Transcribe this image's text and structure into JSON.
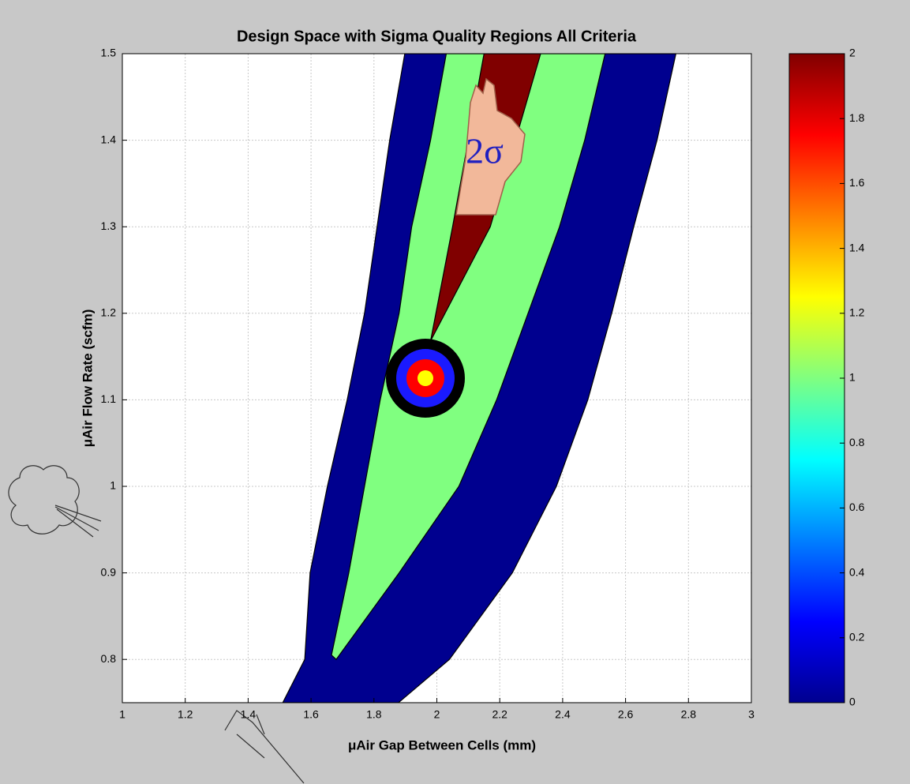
{
  "chart_data": {
    "type": "contour",
    "title": "Design Space with Sigma Quality Regions All Criteria",
    "xlabel": "μAir Gap Between Cells (mm)",
    "ylabel": "μAir Flow Rate (scfm)",
    "annotation": "2σ",
    "xlim": [
      1,
      3
    ],
    "ylim": [
      0.75,
      1.5
    ],
    "xticks": [
      1,
      1.2,
      1.4,
      1.6,
      1.8,
      2,
      2.2,
      2.4,
      2.6,
      2.8,
      3
    ],
    "yticks": [
      0.8,
      0.9,
      1,
      1.1,
      1.2,
      1.3,
      1.4,
      1.5
    ],
    "grid": true,
    "colormap": "jet",
    "clim": [
      0,
      2
    ],
    "cticks": [
      0,
      0.2,
      0.4,
      0.6,
      0.8,
      1,
      1.2,
      1.4,
      1.6,
      1.8,
      2
    ],
    "regions": [
      {
        "color": "#00008f",
        "x": [
          1.51,
          1.58,
          1.597,
          1.652,
          1.715,
          1.77,
          1.81,
          1.85,
          1.898,
          2.76,
          2.7,
          2.626,
          2.556,
          2.48,
          2.38,
          2.24,
          2.04,
          1.878
        ],
        "y": [
          0.75,
          0.8,
          0.9,
          1.0,
          1.1,
          1.2,
          1.3,
          1.4,
          1.5,
          1.5,
          1.4,
          1.3,
          1.2,
          1.1,
          1.0,
          0.9,
          0.8,
          0.75
        ]
      },
      {
        "color": "#80ff80",
        "x": [
          1.665,
          1.72,
          1.77,
          1.82,
          1.88,
          1.92,
          1.98,
          2.03,
          2.535,
          2.47,
          2.39,
          2.29,
          2.19,
          2.07,
          1.88,
          1.68
        ],
        "y": [
          0.805,
          0.9,
          1.0,
          1.1,
          1.2,
          1.3,
          1.4,
          1.5,
          1.5,
          1.4,
          1.3,
          1.2,
          1.1,
          1.0,
          0.9,
          0.8
        ]
      },
      {
        "color": "#800000",
        "x": [
          1.98,
          2.05,
          2.15,
          2.33,
          2.17
        ],
        "y": [
          1.168,
          1.3,
          1.5,
          1.5,
          1.3
        ]
      }
    ]
  }
}
